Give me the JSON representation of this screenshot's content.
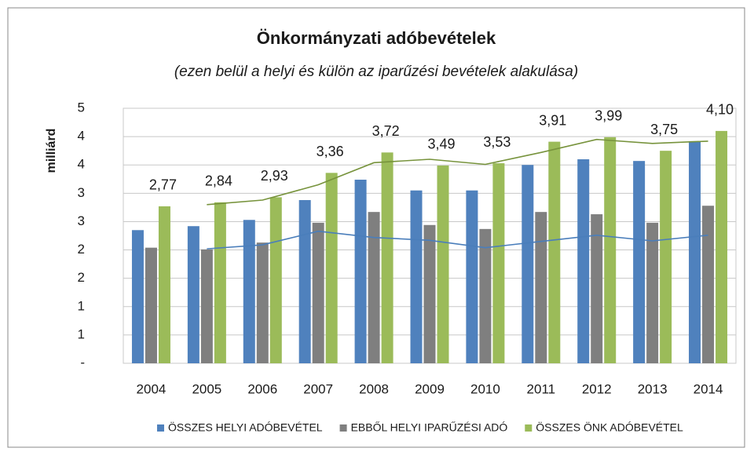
{
  "chart_data": {
    "type": "bar",
    "title": "Önkormányzati adóbevételek",
    "subtitle": "(ezen belül a helyi és külön az iparűzési bevételek alakulása)",
    "y_label": "milliárd",
    "categories": [
      "2004",
      "2005",
      "2006",
      "2007",
      "2008",
      "2009",
      "2010",
      "2011",
      "2012",
      "2013",
      "2014"
    ],
    "series": [
      {
        "name": "ÖSSZES HELYI ADÓBEVÉTEL",
        "color": "#4f81bd",
        "values": [
          2.35,
          2.42,
          2.53,
          2.88,
          3.24,
          3.05,
          3.05,
          3.5,
          3.6,
          3.57,
          3.92
        ]
      },
      {
        "name": "EBBŐL HELYI IPARŰZÉSI ADÓ",
        "color": "#7f7f7f",
        "values": [
          2.04,
          2.01,
          2.13,
          2.48,
          2.67,
          2.44,
          2.37,
          2.67,
          2.63,
          2.48,
          2.78
        ]
      },
      {
        "name": "ÖSSZES ÖNK ADÓBEVÉTEL",
        "color": "#9bbb59",
        "values": [
          2.77,
          2.84,
          2.93,
          3.36,
          3.72,
          3.49,
          3.53,
          3.91,
          3.99,
          3.75,
          4.1
        ],
        "value_labels": [
          "2,77",
          "2,84",
          "2,93",
          "3,36",
          "3,72",
          "3,49",
          "3,53",
          "3,91",
          "3,99",
          "3,75",
          "4,10"
        ]
      }
    ],
    "lines": [
      {
        "color": "#4a7ebb",
        "values": [
          null,
          2.02,
          2.09,
          2.33,
          2.22,
          2.17,
          2.04,
          2.15,
          2.26,
          2.16,
          2.26
        ]
      },
      {
        "color": "#77933c",
        "values": [
          null,
          2.8,
          2.88,
          3.15,
          3.54,
          3.6,
          3.51,
          3.72,
          3.95,
          3.88,
          3.92
        ]
      }
    ],
    "ylim": [
      0,
      4.5
    ],
    "yticks": [
      {
        "value": 0,
        "label": "-"
      },
      {
        "value": 0.5,
        "label": "1"
      },
      1,
      {
        "value": 1.5,
        "label": "2"
      },
      2,
      {
        "value": 2.5,
        "label": "3"
      },
      3,
      {
        "value": 3.5,
        "label": "4"
      },
      4,
      {
        "value": 4.5,
        "label": "5"
      }
    ],
    "grid": true
  }
}
